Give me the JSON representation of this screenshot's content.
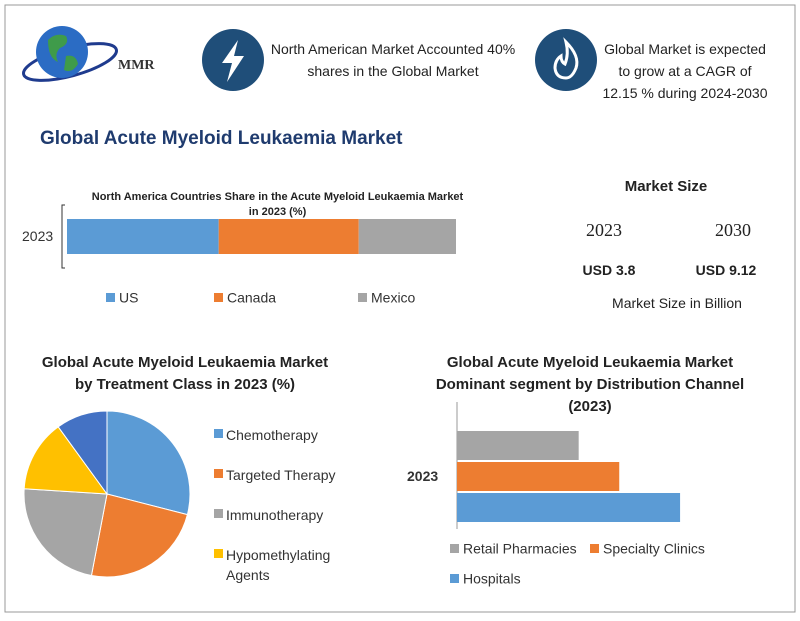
{
  "header": {
    "logo": "MMR",
    "stat1": "North American Market Accounted 40% shares in the Global Market",
    "stat2": "Global Market is expected to grow at a CAGR of 12.15 % during 2024-2030"
  },
  "title": "Global Acute Myeloid Leukaemia Market",
  "market_size": {
    "title": "Market Size",
    "years": [
      "2023",
      "2030"
    ],
    "values": [
      "USD 3.8",
      "USD 9.12"
    ],
    "note": "Market Size in Billion"
  },
  "chart_data": [
    {
      "type": "bar",
      "orientation": "horizontal",
      "stacked": true,
      "title": "North America Countries Share in the Acute Myeloid Leukaemia Market in 2023  (%)",
      "categories": [
        "2023"
      ],
      "series": [
        {
          "name": "US",
          "color": "#5b9bd5",
          "values": [
            39
          ]
        },
        {
          "name": "Canada",
          "color": "#ed7d31",
          "values": [
            36
          ]
        },
        {
          "name": "Mexico",
          "color": "#a5a5a5",
          "values": [
            25
          ]
        }
      ]
    },
    {
      "type": "pie",
      "title": "Global Acute Myeloid Leukaemia Market by Treatment Class    in 2023 (%)",
      "categories": [
        "Chemotherapy",
        "Targeted Therapy",
        "Immunotherapy",
        "Hypomethylating Agents",
        null
      ],
      "values": [
        29,
        24,
        23,
        14,
        10
      ],
      "colors": [
        "#5b9bd5",
        "#ed7d31",
        "#a5a5a5",
        "#ffc000",
        "#4472c4"
      ]
    },
    {
      "type": "bar",
      "orientation": "horizontal",
      "stacked": false,
      "title": "Global Acute Myeloid Leukaemia Market Dominant segment by Distribution Channel (2023)",
      "categories": [
        "2023"
      ],
      "series": [
        {
          "name": "Retail Pharmacies",
          "color": "#a5a5a5",
          "values": [
            24
          ]
        },
        {
          "name": "Specialty Clinics",
          "color": "#ed7d31",
          "values": [
            32
          ]
        },
        {
          "name": "Hospitals",
          "color": "#5b9bd5",
          "values": [
            44
          ]
        }
      ]
    }
  ]
}
